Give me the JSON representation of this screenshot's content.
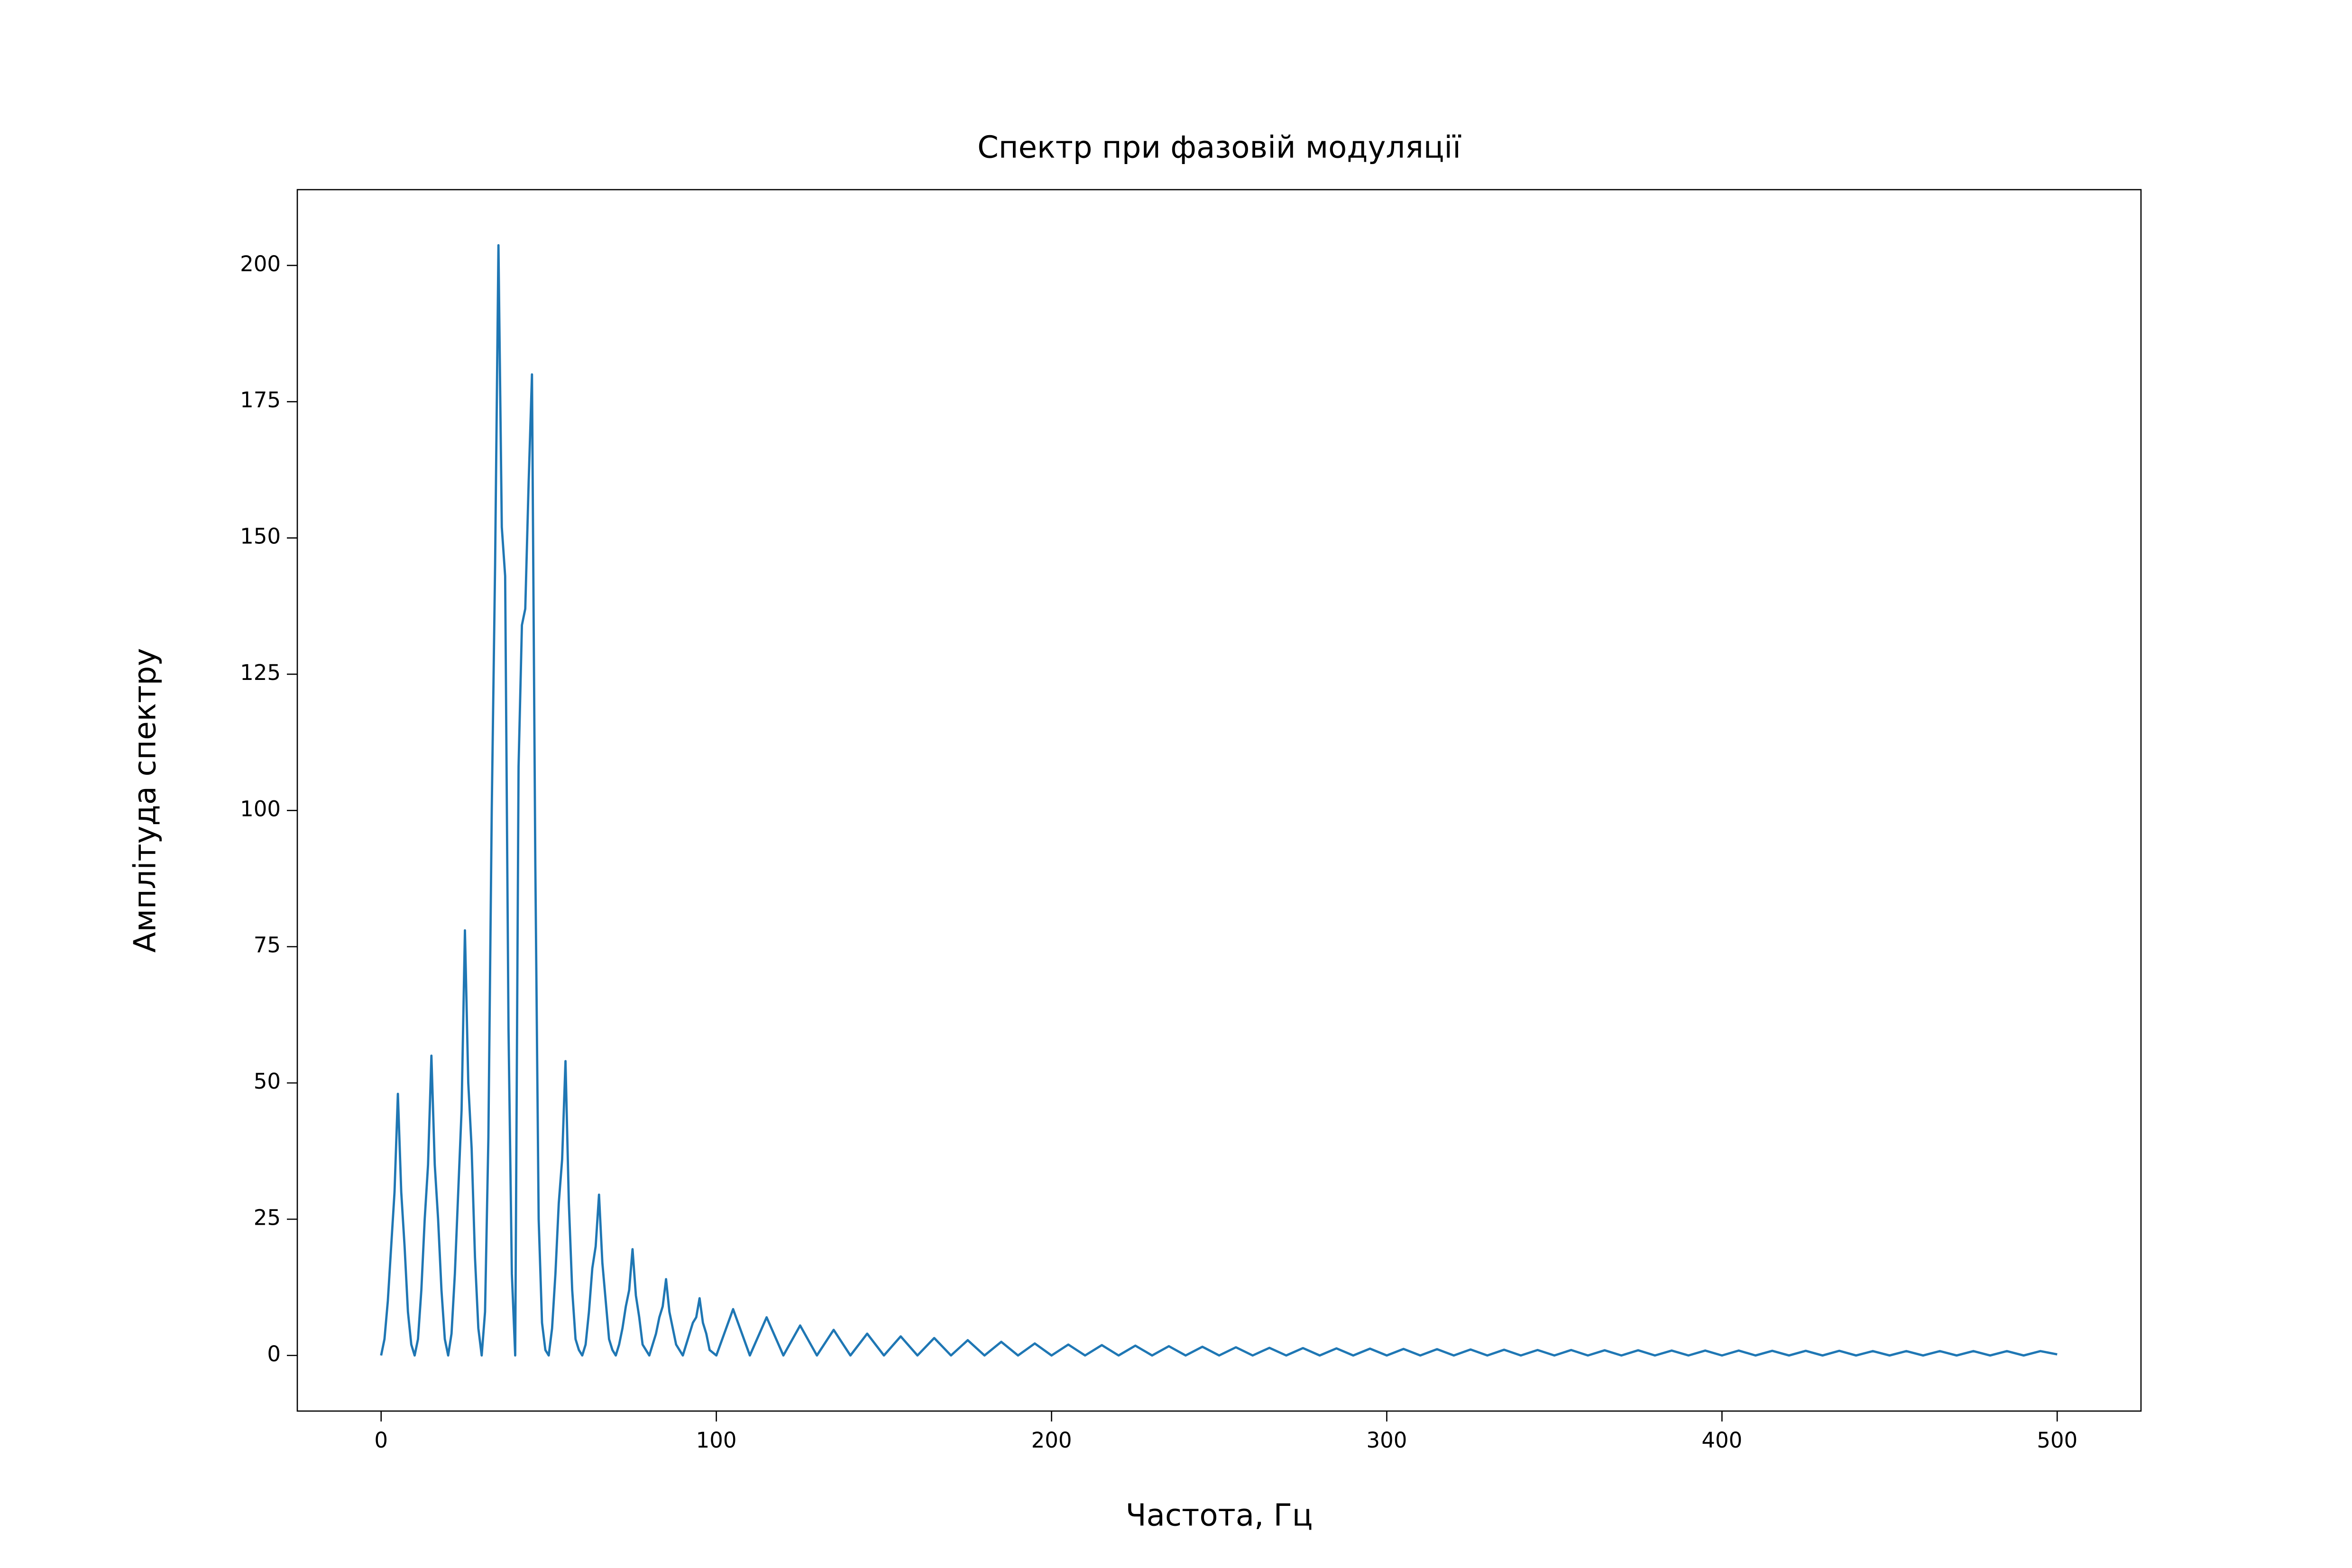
{
  "chart_data": {
    "type": "line",
    "title": "Спектр при фазовій модуляції",
    "x_label": "Частота, Гц",
    "y_label": "Амплітуда спектру",
    "color": "#1f77b4",
    "xlim": [
      -25,
      525
    ],
    "ylim": [
      -10.2,
      213.9
    ],
    "xticks": [
      0,
      100,
      200,
      300,
      400,
      500
    ],
    "yticks": [
      0,
      25,
      50,
      75,
      100,
      125,
      150,
      175,
      200
    ],
    "x": [
      0,
      1,
      2,
      3,
      4,
      5,
      6,
      7,
      8,
      9,
      10,
      11,
      12,
      13,
      14,
      15,
      16,
      17,
      18,
      19,
      20,
      21,
      22,
      23,
      24,
      25,
      26,
      27,
      28,
      29,
      30,
      31,
      32,
      33,
      34,
      35,
      36,
      37,
      38,
      39,
      40,
      41,
      42,
      43,
      44,
      45,
      46,
      47,
      48,
      49,
      50,
      51,
      52,
      53,
      54,
      55,
      56,
      57,
      58,
      59,
      60,
      61,
      62,
      63,
      64,
      65,
      66,
      67,
      68,
      69,
      70,
      71,
      72,
      73,
      74,
      75,
      76,
      77,
      78,
      79,
      80,
      81,
      82,
      83,
      84,
      85,
      86,
      87,
      88,
      89,
      90,
      91,
      92,
      93,
      94,
      95,
      96,
      97,
      98,
      99,
      100,
      105,
      110,
      115,
      120,
      125,
      130,
      135,
      140,
      145,
      150,
      155,
      160,
      165,
      170,
      175,
      180,
      185,
      190,
      195,
      200,
      205,
      210,
      215,
      220,
      225,
      230,
      235,
      240,
      245,
      250,
      255,
      260,
      265,
      270,
      275,
      280,
      285,
      290,
      295,
      300,
      305,
      310,
      315,
      320,
      325,
      330,
      335,
      340,
      345,
      350,
      355,
      360,
      365,
      370,
      375,
      380,
      385,
      390,
      395,
      400,
      405,
      410,
      415,
      420,
      425,
      430,
      435,
      440,
      445,
      450,
      455,
      460,
      465,
      470,
      475,
      480,
      485,
      490,
      495,
      500
    ],
    "values": [
      0,
      3,
      10,
      20,
      30,
      48,
      30,
      20,
      8,
      2,
      0,
      3,
      12,
      25,
      35,
      55,
      35,
      25,
      12,
      3,
      0,
      4,
      15,
      30,
      45,
      78,
      50,
      38,
      18,
      5,
      0,
      8,
      40,
      100,
      145,
      203.7,
      152,
      143,
      60,
      15,
      0,
      108,
      134,
      137,
      160,
      180,
      90,
      25,
      6,
      1,
      0,
      5,
      15,
      28,
      36,
      54,
      28,
      12,
      3,
      1,
      0,
      2,
      8,
      16,
      20,
      29.5,
      17,
      10,
      3,
      1,
      0,
      2,
      5,
      9,
      12,
      19.5,
      11,
      7,
      2,
      1,
      0,
      2,
      4,
      7,
      9,
      14,
      8,
      5,
      2,
      1,
      0,
      2,
      4,
      6,
      7,
      10.5,
      6,
      4,
      1,
      0.5,
      0,
      8.5,
      0,
      7,
      0,
      5.5,
      0,
      4.7,
      0,
      4,
      0,
      3.5,
      0,
      3.2,
      0,
      2.8,
      0,
      2.5,
      0,
      2.2,
      0,
      2.0,
      0,
      1.9,
      0,
      1.8,
      0,
      1.7,
      0,
      1.6,
      0,
      1.5,
      0,
      1.4,
      0,
      1.35,
      0,
      1.3,
      0,
      1.25,
      0,
      1.2,
      0,
      1.15,
      0,
      1.1,
      0,
      1.05,
      0,
      1,
      0,
      1,
      0,
      0.95,
      0,
      0.95,
      0,
      0.9,
      0,
      0.9,
      0,
      0.9,
      0,
      0.85,
      0,
      0.85,
      0,
      0.85,
      0,
      0.8,
      0,
      0.8,
      0,
      0.8,
      0,
      0.8,
      0,
      0.8,
      0,
      0.8,
      0.2
    ]
  }
}
